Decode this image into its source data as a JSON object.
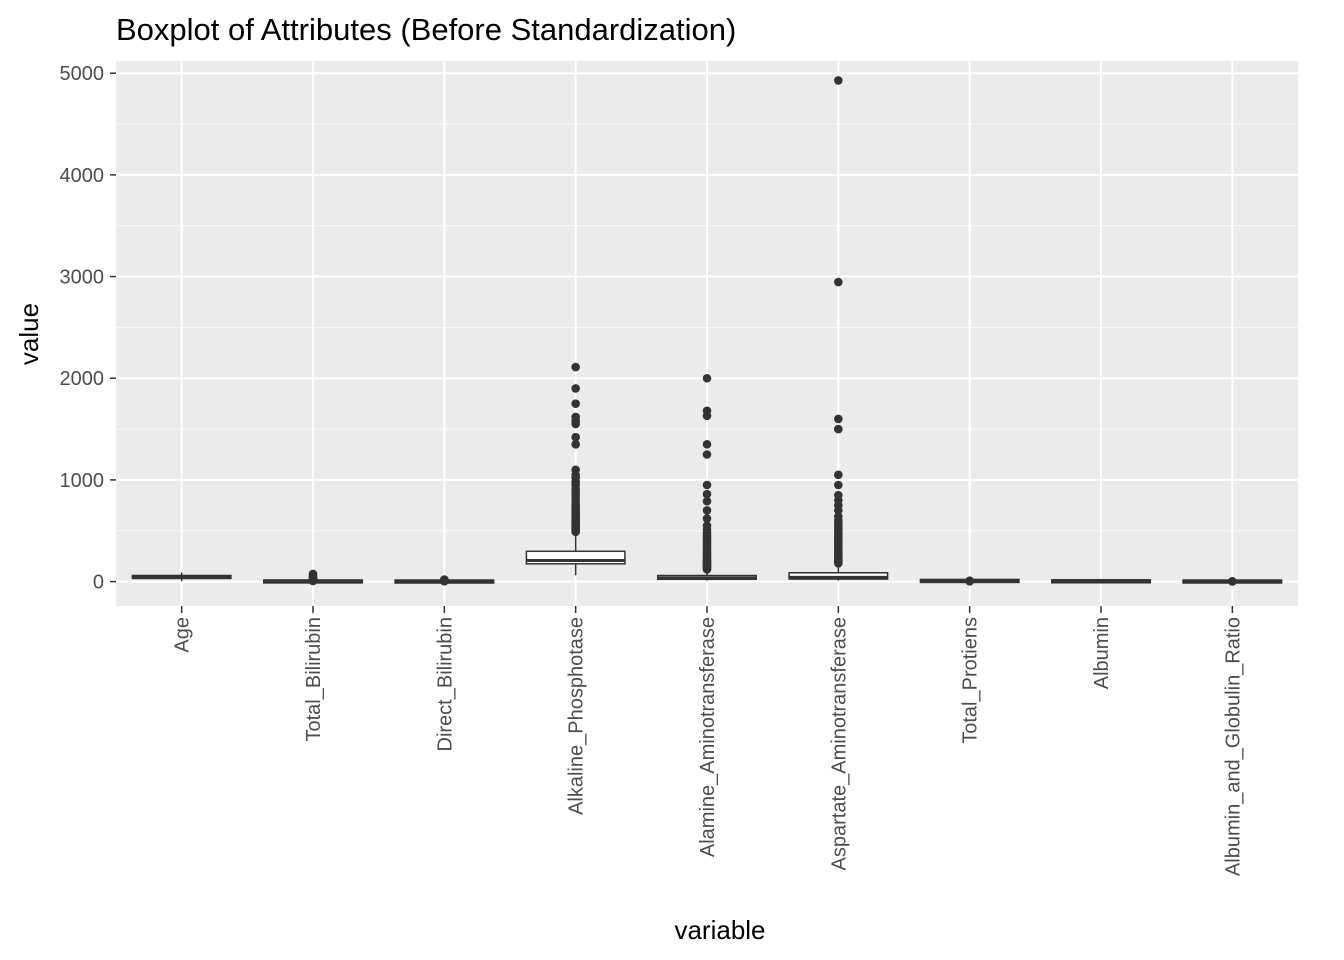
{
  "chart_data": {
    "type": "boxplot",
    "title": "Boxplot of Attributes (Before Standardization)",
    "xlabel": "variable",
    "ylabel": "value",
    "ylim": [
      -240,
      5120
    ],
    "yticks": [
      0,
      1000,
      2000,
      3000,
      4000,
      5000
    ],
    "yticks_labels": [
      "0",
      "1000",
      "2000",
      "3000",
      "4000",
      "5000"
    ],
    "grid": true,
    "legend": "none",
    "colors": {
      "panel": "#EBEBEB",
      "grid_major": "#FFFFFF",
      "box_fill": "#FFFFFF",
      "box_line": "#333333",
      "outlier": "#333333",
      "tick_text": "#4D4D4D"
    },
    "categories": [
      "Age",
      "Total_Bilirubin",
      "Direct_Bilirubin",
      "Alkaline_Phosphotase",
      "Alamine_Aminotransferase",
      "Aspartate_Aminotransferase",
      "Total_Protiens",
      "Albumin",
      "Albumin_and_Globulin_Ratio"
    ],
    "boxes": [
      {
        "min": 4,
        "q1": 33,
        "median": 45,
        "q3": 58,
        "max": 90,
        "outliers": []
      },
      {
        "min": 0.4,
        "q1": 0.8,
        "median": 1.0,
        "q3": 2.6,
        "max": 5.3,
        "outliers": [
          6,
          8,
          10,
          14,
          18,
          22,
          26,
          30,
          42,
          48,
          60,
          75
        ]
      },
      {
        "min": 0.1,
        "q1": 0.2,
        "median": 0.3,
        "q3": 1.3,
        "max": 2.9,
        "outliers": [
          3.5,
          5,
          7,
          10,
          13,
          16,
          19.7
        ]
      },
      {
        "min": 63,
        "q1": 175,
        "median": 208,
        "q3": 298,
        "max": 480,
        "outliers": [
          490,
          500,
          510,
          520,
          530,
          540,
          550,
          560,
          570,
          580,
          590,
          600,
          615,
          630,
          645,
          660,
          680,
          700,
          720,
          740,
          760,
          790,
          820,
          850,
          880,
          910,
          950,
          980,
          1020,
          1050,
          1100,
          1350,
          1420,
          1550,
          1580,
          1620,
          1750,
          1900,
          2110
        ]
      },
      {
        "min": 10,
        "q1": 23,
        "median": 35,
        "q3": 60,
        "max": 115,
        "outliers": [
          120,
          130,
          140,
          150,
          160,
          170,
          180,
          190,
          200,
          210,
          220,
          230,
          245,
          260,
          275,
          290,
          305,
          320,
          340,
          360,
          380,
          400,
          420,
          440,
          460,
          480,
          510,
          550,
          620,
          700,
          790,
          860,
          950,
          1250,
          1350,
          1630,
          1680,
          2000
        ]
      },
      {
        "min": 10,
        "q1": 25,
        "median": 42,
        "q3": 87,
        "max": 175,
        "outliers": [
          180,
          190,
          200,
          210,
          225,
          240,
          255,
          270,
          285,
          300,
          320,
          340,
          360,
          380,
          400,
          420,
          440,
          460,
          480,
          500,
          520,
          545,
          570,
          600,
          640,
          700,
          750,
          800,
          850,
          950,
          1050,
          1500,
          1600,
          2946,
          4929
        ]
      },
      {
        "min": 2.7,
        "q1": 5.8,
        "median": 6.6,
        "q3": 7.2,
        "max": 9.6,
        "outliers": [
          2.8,
          9.2
        ]
      },
      {
        "min": 0.9,
        "q1": 2.6,
        "median": 3.1,
        "q3": 3.8,
        "max": 5.5,
        "outliers": []
      },
      {
        "min": 0.3,
        "q1": 0.7,
        "median": 0.93,
        "q3": 1.1,
        "max": 1.7,
        "outliers": [
          1.9,
          2.8
        ]
      }
    ]
  }
}
